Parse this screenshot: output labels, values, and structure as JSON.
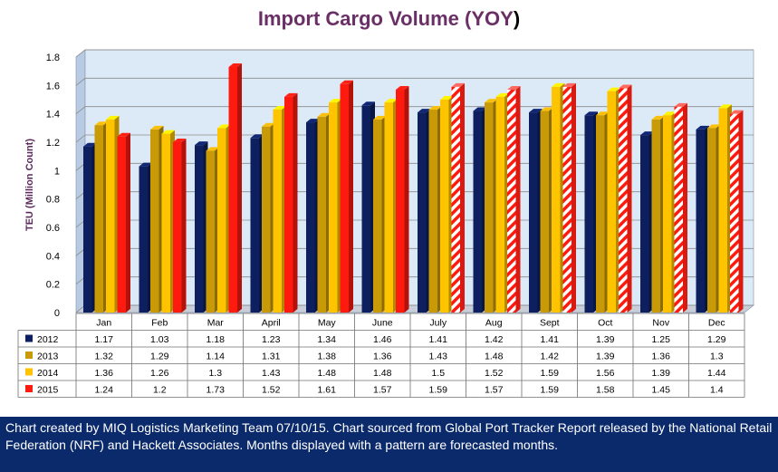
{
  "chart_data": {
    "type": "bar",
    "title": "Import Cargo Volume (YOY)",
    "ylabel": "TEU (Million Count)",
    "ylim": [
      0,
      1.8
    ],
    "yticks": [
      "0",
      "0.2",
      "0.4",
      "0.6",
      "0.8",
      "1",
      "1.2",
      "1.4",
      "1.6",
      "1.8"
    ],
    "categories": [
      "Jan",
      "Feb",
      "Mar",
      "April",
      "May",
      "June",
      "July",
      "Aug",
      "Sept",
      "Oct",
      "Nov",
      "Dec"
    ],
    "series": [
      {
        "name": "2012",
        "color": "#0d1f5e",
        "values": [
          1.17,
          1.03,
          1.18,
          1.23,
          1.34,
          1.46,
          1.41,
          1.42,
          1.41,
          1.39,
          1.25,
          1.29
        ]
      },
      {
        "name": "2013",
        "color": "#c89a08",
        "values": [
          1.32,
          1.29,
          1.14,
          1.31,
          1.38,
          1.36,
          1.43,
          1.48,
          1.42,
          1.39,
          1.36,
          1.3
        ]
      },
      {
        "name": "2014",
        "color": "#ffc400",
        "values": [
          1.36,
          1.26,
          1.3,
          1.43,
          1.48,
          1.48,
          1.5,
          1.52,
          1.59,
          1.56,
          1.39,
          1.44
        ]
      },
      {
        "name": "2015",
        "color": "#ff1a10",
        "values": [
          1.24,
          1.2,
          1.73,
          1.52,
          1.61,
          1.57,
          1.59,
          1.57,
          1.59,
          1.58,
          1.45,
          1.4
        ],
        "forecast_from": "July"
      }
    ],
    "table_labels": {
      "2012": [
        "1.17",
        "1.03",
        "1.18",
        "1.23",
        "1.34",
        "1.46",
        "1.41",
        "1.42",
        "1.41",
        "1.39",
        "1.25",
        "1.29"
      ],
      "2013": [
        "1.32",
        "1.29",
        "1.14",
        "1.31",
        "1.38",
        "1.36",
        "1.43",
        "1.48",
        "1.42",
        "1.39",
        "1.36",
        "1.3"
      ],
      "2014": [
        "1.36",
        "1.26",
        "1.3",
        "1.43",
        "1.48",
        "1.48",
        "1.5",
        "1.52",
        "1.59",
        "1.56",
        "1.39",
        "1.44"
      ],
      "2015": [
        "1.24",
        "1.2",
        "1.73",
        "1.52",
        "1.61",
        "1.57",
        "1.59",
        "1.57",
        "1.59",
        "1.58",
        "1.45",
        "1.4"
      ]
    },
    "plot_background": "#dce9f7",
    "grid": true,
    "legend": "data-table-left"
  },
  "footer": {
    "note": "Chart created by MIQ Logistics Marketing Team 07/10/15. Chart sourced from Global Port Tracker Report released by the National Retail Federation (NRF) and Hackett Associates. Months displayed with a pattern are forecasted months."
  }
}
